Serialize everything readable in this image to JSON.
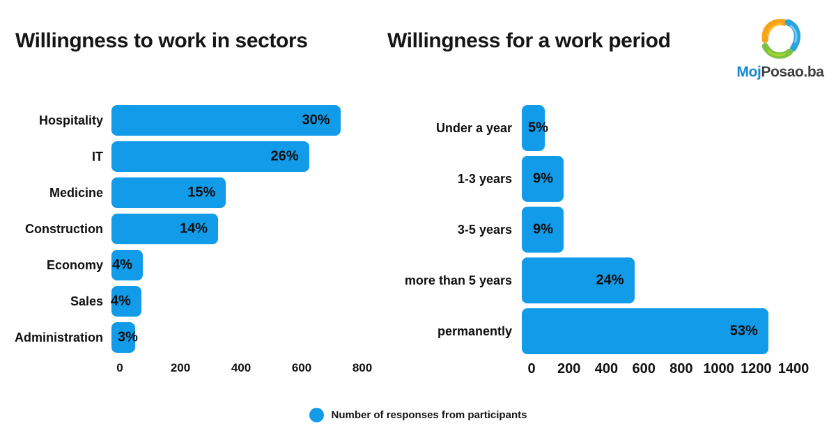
{
  "colors": {
    "accent_blue": "#129BE8",
    "text": "#141414",
    "logo_blue": "#1789CE",
    "logo_dark": "#3E3E40",
    "logo_orange": "#F7A21B",
    "logo_green": "#7DC242",
    "logo_swirl_blue": "#2BA3DC"
  },
  "logo": {
    "icon": "mojposao-swirl-icon",
    "brand_blue": "Moj",
    "brand_dark": "Posao.ba"
  },
  "legend": {
    "marker_color": "#129BE8",
    "label": "Number of responses from participants"
  },
  "chart_data": [
    {
      "type": "bar",
      "orientation": "horizontal",
      "title": "Willingness to work in sectors",
      "categories": [
        "Hospitality",
        "IT",
        "Medicine",
        "Construction",
        "Economy",
        "Sales",
        "Administration"
      ],
      "values": [
        730,
        630,
        365,
        340,
        100,
        95,
        75
      ],
      "labels": [
        "30%",
        "26%",
        "15%",
        "14%",
        "4%",
        "4%",
        "3%"
      ],
      "xlim": [
        0,
        800
      ],
      "xticks": [
        0,
        200,
        400,
        600,
        800
      ],
      "bar_color": "#129BE8",
      "grid": false,
      "value_label_position": "inside-end"
    },
    {
      "type": "bar",
      "orientation": "horizontal",
      "title": "Willingness for a work period",
      "categories": [
        "Under a year",
        "1-3 years",
        "3-5 years",
        "more than 5 years",
        "permanently"
      ],
      "values": [
        120,
        215,
        215,
        580,
        1270
      ],
      "labels": [
        "5%",
        "9%",
        "9%",
        "24%",
        "53%"
      ],
      "xlim": [
        0,
        1400
      ],
      "xticks": [
        0,
        200,
        400,
        600,
        800,
        1000,
        1200,
        1400
      ],
      "bar_color": "#129BE8",
      "grid": false,
      "value_label_position": "inside-end"
    }
  ]
}
